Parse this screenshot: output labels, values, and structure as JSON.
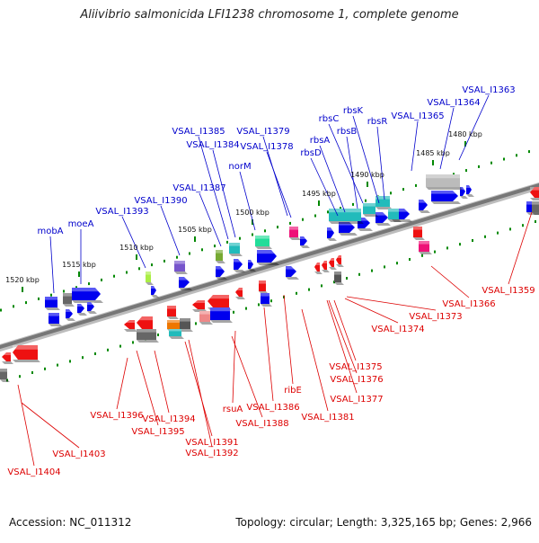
{
  "title": "Aliivibrio salmonicida LFI1238 chromosome 1, complete genome",
  "footer": {
    "accession": "Accession: NC_011312",
    "summary": "Topology: circular; Length: 3,325,165 bp; Genes: 2,966"
  },
  "colors": {
    "forward_label": "#0000cc",
    "reverse_label": "#dd0000",
    "backbone": "#777777",
    "tick": "#008800"
  },
  "scale_labels": [
    "1480 kbp",
    "1485 kbp",
    "1490 kbp",
    "1495 kbp",
    "1500 kbp",
    "1505 kbp",
    "1510 kbp",
    "1515 kbp",
    "1520 kbp"
  ],
  "forward_genes": [
    "VSAL_I1363",
    "VSAL_I1364",
    "VSAL_I1365",
    "rbsK",
    "rbsR",
    "rbsC",
    "rbsB",
    "rbsA",
    "rbsD",
    "VSAL_I1379",
    "VSAL_I1378",
    "VSAL_I1385",
    "VSAL_I1384",
    "norM",
    "VSAL_I1387",
    "VSAL_I1390",
    "VSAL_I1393",
    "moeA",
    "mobA"
  ],
  "reverse_genes": [
    "VSAL_I1359",
    "VSAL_I1366",
    "VSAL_I1373",
    "VSAL_I1374",
    "VSAL_I1375",
    "VSAL_I1376",
    "VSAL_I1377",
    "VSAL_I1381",
    "ribE",
    "VSAL_I1386",
    "rsuA",
    "VSAL_I1388",
    "VSAL_I1391",
    "VSAL_I1392",
    "VSAL_I1394",
    "VSAL_I1395",
    "VSAL_I1396",
    "VSAL_I1403",
    "VSAL_I1404"
  ]
}
